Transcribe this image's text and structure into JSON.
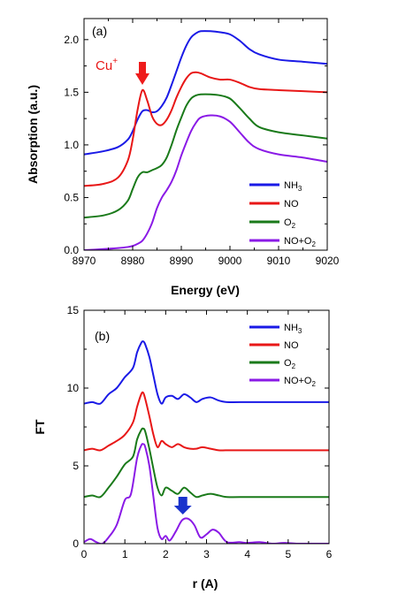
{
  "chart_data": [
    {
      "type": "line",
      "panel_label": "(a)",
      "xlabel": "Energy (eV)",
      "ylabel": "Absorption (a.u.)",
      "xlim": [
        8970,
        9020
      ],
      "ylim": [
        0.0,
        2.2
      ],
      "xticks": [
        "8970",
        "8980",
        "8990",
        "9000",
        "9010",
        "9020"
      ],
      "yticks": [
        "0.0",
        "0.5",
        "1.0",
        "1.5",
        "2.0"
      ],
      "legend_position": "bottom-right",
      "annotation": {
        "text": "Cu",
        "superscript": "+",
        "points_to_x": 8982,
        "arrow_color": "#ee1c1c"
      },
      "series": [
        {
          "name": "NH₃",
          "name_main": "NH",
          "name_sub": "3",
          "name_tail": "",
          "color": "#1a1ae6",
          "x": [
            8970,
            8974,
            8977,
            8979,
            8980,
            8981,
            8982,
            8983,
            8984,
            8985,
            8986,
            8987,
            8988,
            8989,
            8990,
            8991,
            8992,
            8993,
            8994,
            8996,
            8998,
            9000,
            9002,
            9004,
            9006,
            9010,
            9015,
            9020
          ],
          "y": [
            0.91,
            0.94,
            0.98,
            1.05,
            1.13,
            1.24,
            1.32,
            1.33,
            1.31,
            1.32,
            1.37,
            1.45,
            1.57,
            1.7,
            1.83,
            1.94,
            2.02,
            2.06,
            2.08,
            2.08,
            2.07,
            2.05,
            1.99,
            1.91,
            1.86,
            1.81,
            1.79,
            1.77
          ]
        },
        {
          "name": "NO",
          "name_main": "NO",
          "name_sub": "",
          "name_tail": "",
          "color": "#e81717",
          "x": [
            8970,
            8974,
            8977,
            8979,
            8980,
            8981,
            8982,
            8983,
            8984,
            8985,
            8986,
            8987,
            8988,
            8989,
            8990,
            8991,
            8992,
            8993,
            8994,
            8996,
            8998,
            9000,
            9002,
            9004,
            9006,
            9010,
            9015,
            9020
          ],
          "y": [
            0.61,
            0.63,
            0.69,
            0.85,
            1.05,
            1.33,
            1.52,
            1.42,
            1.27,
            1.2,
            1.19,
            1.24,
            1.33,
            1.45,
            1.55,
            1.63,
            1.68,
            1.69,
            1.68,
            1.64,
            1.62,
            1.62,
            1.59,
            1.55,
            1.53,
            1.52,
            1.51,
            1.5
          ]
        },
        {
          "name": "O₂",
          "name_main": "O",
          "name_sub": "2",
          "name_tail": "",
          "color": "#1a7a1a",
          "x": [
            8970,
            8974,
            8977,
            8979,
            8980,
            8981,
            8982,
            8983,
            8984,
            8985,
            8986,
            8987,
            8988,
            8989,
            8990,
            8991,
            8992,
            8993,
            8994,
            8996,
            8998,
            9000,
            9002,
            9004,
            9006,
            9010,
            9015,
            9020
          ],
          "y": [
            0.31,
            0.33,
            0.38,
            0.47,
            0.58,
            0.69,
            0.74,
            0.74,
            0.76,
            0.78,
            0.81,
            0.88,
            1.0,
            1.14,
            1.26,
            1.37,
            1.44,
            1.47,
            1.48,
            1.48,
            1.47,
            1.44,
            1.35,
            1.25,
            1.17,
            1.12,
            1.09,
            1.06
          ]
        },
        {
          "name": "NO+O₂",
          "name_main": "NO+O",
          "name_sub": "2",
          "name_tail": "",
          "color": "#8a1ae6",
          "x": [
            8970,
            8974,
            8977,
            8979,
            8980,
            8981,
            8982,
            8983,
            8984,
            8985,
            8986,
            8987,
            8988,
            8989,
            8990,
            8991,
            8992,
            8993,
            8994,
            8996,
            8998,
            9000,
            9002,
            9004,
            9006,
            9010,
            9015,
            9020
          ],
          "y": [
            0.0,
            0.01,
            0.02,
            0.03,
            0.04,
            0.06,
            0.09,
            0.16,
            0.26,
            0.4,
            0.5,
            0.57,
            0.65,
            0.76,
            0.9,
            1.02,
            1.13,
            1.21,
            1.26,
            1.28,
            1.27,
            1.22,
            1.12,
            1.02,
            0.96,
            0.91,
            0.88,
            0.84
          ]
        }
      ]
    },
    {
      "type": "line",
      "panel_label": "(b)",
      "xlabel": "r (A)",
      "ylabel": "FT",
      "xlim": [
        0,
        6
      ],
      "ylim": [
        0,
        15
      ],
      "xticks": [
        "0",
        "1",
        "2",
        "3",
        "4",
        "5",
        "6"
      ],
      "yticks": [
        "0",
        "5",
        "10",
        "15"
      ],
      "legend_position": "top-right",
      "annotation": {
        "points_to_x": 2.42,
        "arrow_color": "#1a33cc"
      },
      "series": [
        {
          "name": "NH₃",
          "name_main": "NH",
          "name_sub": "3",
          "name_tail": "",
          "color": "#1a1ae6",
          "x": [
            0.0,
            0.2,
            0.4,
            0.6,
            0.8,
            1.0,
            1.2,
            1.3,
            1.4,
            1.45,
            1.5,
            1.6,
            1.7,
            1.8,
            1.9,
            2.0,
            2.15,
            2.3,
            2.45,
            2.6,
            2.75,
            2.9,
            3.1,
            3.3,
            3.5,
            4.0,
            4.5,
            5.0,
            5.5,
            6.0
          ],
          "y": [
            9.0,
            9.1,
            9.0,
            9.6,
            10.0,
            10.7,
            11.3,
            12.3,
            12.9,
            13.0,
            12.8,
            12.0,
            10.8,
            9.6,
            9.0,
            9.4,
            9.5,
            9.3,
            9.6,
            9.4,
            9.1,
            9.3,
            9.4,
            9.2,
            9.1,
            9.1,
            9.1,
            9.1,
            9.1,
            9.1
          ]
        },
        {
          "name": "NO",
          "name_main": "NO",
          "name_sub": "",
          "name_tail": "",
          "color": "#e81717",
          "x": [
            0.0,
            0.2,
            0.4,
            0.6,
            0.8,
            1.0,
            1.2,
            1.3,
            1.4,
            1.45,
            1.5,
            1.6,
            1.7,
            1.8,
            1.9,
            2.0,
            2.15,
            2.3,
            2.45,
            2.6,
            2.75,
            2.9,
            3.1,
            3.3,
            3.5,
            4.0,
            4.5,
            5.0,
            5.5,
            6.0
          ],
          "y": [
            6.0,
            6.1,
            6.0,
            6.3,
            6.6,
            7.0,
            7.8,
            8.8,
            9.6,
            9.7,
            9.3,
            8.2,
            7.0,
            6.2,
            6.6,
            6.4,
            6.2,
            6.4,
            6.2,
            6.1,
            6.1,
            6.2,
            6.1,
            6.0,
            6.0,
            6.0,
            6.0,
            6.0,
            6.0,
            6.0
          ]
        },
        {
          "name": "O₂",
          "name_main": "O",
          "name_sub": "2",
          "name_tail": "",
          "color": "#1a7a1a",
          "x": [
            0.0,
            0.2,
            0.4,
            0.6,
            0.8,
            1.0,
            1.2,
            1.3,
            1.4,
            1.45,
            1.5,
            1.6,
            1.7,
            1.8,
            1.9,
            2.0,
            2.15,
            2.3,
            2.45,
            2.6,
            2.75,
            2.9,
            3.1,
            3.3,
            3.5,
            4.0,
            4.5,
            5.0,
            5.5,
            6.0
          ],
          "y": [
            3.0,
            3.1,
            3.0,
            3.6,
            4.3,
            5.1,
            5.6,
            6.7,
            7.3,
            7.4,
            7.2,
            6.1,
            4.8,
            3.6,
            3.1,
            3.6,
            3.4,
            3.2,
            3.6,
            3.3,
            3.0,
            3.1,
            3.2,
            3.1,
            3.0,
            3.0,
            3.0,
            3.0,
            3.0,
            3.0
          ]
        },
        {
          "name": "NO+O₂",
          "name_main": "NO+O",
          "name_sub": "2",
          "name_tail": "",
          "color": "#8a1ae6",
          "x": [
            0.0,
            0.15,
            0.3,
            0.45,
            0.6,
            0.8,
            1.0,
            1.15,
            1.3,
            1.4,
            1.45,
            1.5,
            1.6,
            1.7,
            1.8,
            1.9,
            2.0,
            2.1,
            2.25,
            2.4,
            2.55,
            2.7,
            2.85,
            3.0,
            3.15,
            3.3,
            3.5,
            3.8,
            4.0,
            4.3,
            4.6,
            4.9,
            5.2,
            5.6,
            6.0
          ],
          "y": [
            0.1,
            0.3,
            0.1,
            0.0,
            0.4,
            1.2,
            2.8,
            3.2,
            5.5,
            6.3,
            6.4,
            6.2,
            5.0,
            3.0,
            1.0,
            0.3,
            0.5,
            0.2,
            0.8,
            1.5,
            1.6,
            1.2,
            0.4,
            0.6,
            0.9,
            0.7,
            0.1,
            0.1,
            0.05,
            0.1,
            0.0,
            0.05,
            0.0,
            0.0,
            0.0
          ]
        }
      ]
    }
  ]
}
